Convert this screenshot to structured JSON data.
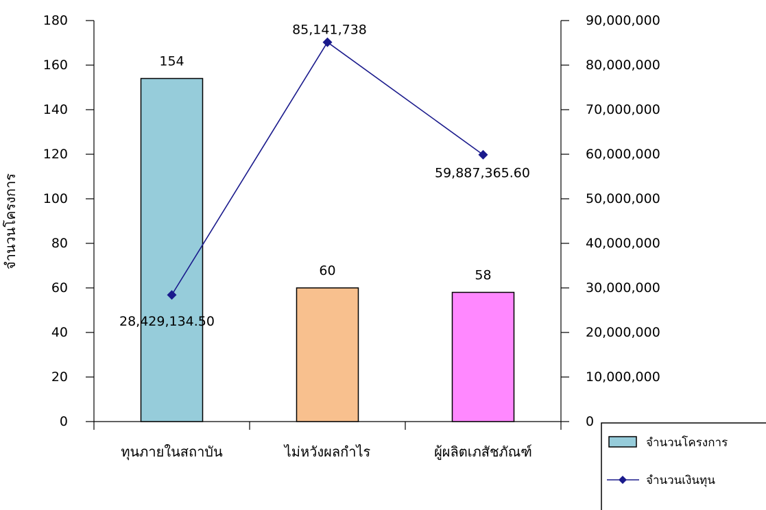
{
  "chart_data": {
    "type": "bar",
    "categories": [
      "ทุนภายในสถาบัน",
      "ไม่หวังผลกำไร",
      "ผู้ผลิตเภสัชภัณฑ์"
    ],
    "series": [
      {
        "name": "จำนวนโครงการ",
        "type": "bar",
        "axis": "left",
        "values": [
          154,
          60,
          58
        ],
        "labels": [
          "154",
          "60",
          "58"
        ],
        "colors": [
          "#96CCDA",
          "#F8C08E",
          "#FF88FF"
        ]
      },
      {
        "name": "จำนวนเงินทุน",
        "type": "line",
        "axis": "right",
        "values": [
          28429134.5,
          85141738,
          59887365.6
        ],
        "labels": [
          "28,429,134.50",
          "85,141,738",
          "59,887,365.60"
        ],
        "color": "#1A1A8C"
      }
    ],
    "ylabel": "จำนวนโครงการ",
    "ylim": [
      0,
      180
    ],
    "y_ticks": [
      "0",
      "20",
      "40",
      "60",
      "80",
      "100",
      "120",
      "140",
      "160",
      "180"
    ],
    "y2lim": [
      0,
      90000000
    ],
    "y2_ticks": [
      "0",
      "10,000,000",
      "20,000,000",
      "30,000,000",
      "40,000,000",
      "50,000,000",
      "60,000,000",
      "70,000,000",
      "80,000,000",
      "90,000,000"
    ],
    "grid": false,
    "legend": "bottom-right"
  }
}
